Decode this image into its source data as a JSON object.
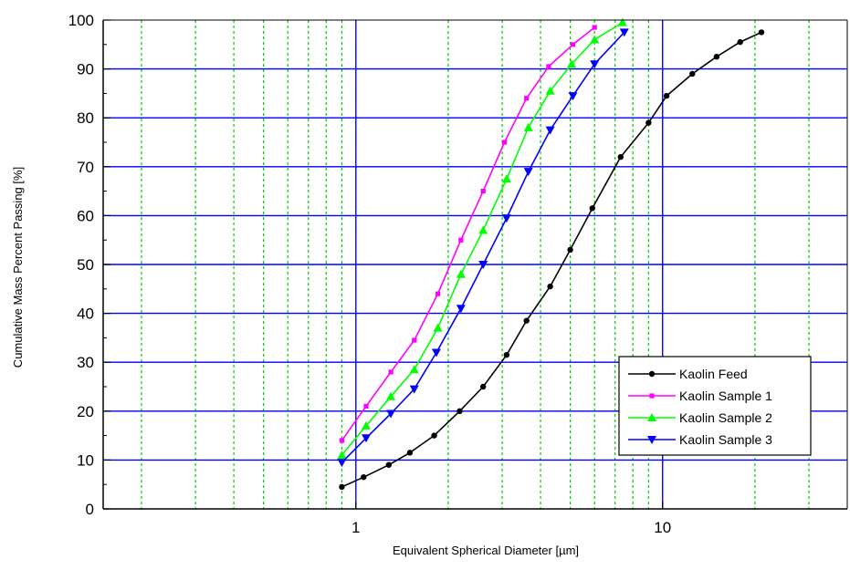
{
  "chart_data": {
    "type": "line",
    "xlabel": "Equivalent Spherical Diameter [µm]",
    "ylabel": "Cumulative Mass Percent Passing [%]",
    "x_scale": "log",
    "xlim": [
      0.15,
      40
    ],
    "ylim": [
      0,
      100
    ],
    "x_ticks": [
      1,
      10
    ],
    "x_tick_labels": [
      "1",
      "10"
    ],
    "y_ticks": [
      0,
      10,
      20,
      30,
      40,
      50,
      60,
      70,
      80,
      90,
      100
    ],
    "y_tick_labels": [
      "0",
      "10",
      "20",
      "30",
      "40",
      "50",
      "60",
      "70",
      "80",
      "90",
      "100"
    ],
    "grid": true,
    "legend_position": "lower-right",
    "colors": {
      "major_grid": "#0000ff",
      "minor_grid": "#00cc00"
    },
    "series": [
      {
        "name": "Kaolin Feed",
        "color": "#000000",
        "marker": "circle",
        "x": [
          0.9,
          1.06,
          1.28,
          1.5,
          1.8,
          2.18,
          2.6,
          3.1,
          3.6,
          4.3,
          5.0,
          5.9,
          7.3,
          9.0,
          10.3,
          12.5,
          15.0,
          17.9,
          21.0
        ],
        "y": [
          4.5,
          6.5,
          9,
          11.5,
          15,
          20,
          25,
          31.5,
          38.5,
          45.5,
          53,
          61.5,
          72,
          79,
          84.5,
          89,
          92.5,
          95.5,
          97.5
        ]
      },
      {
        "name": "Kaolin Sample 1",
        "color": "#ff00ff",
        "marker": "square",
        "x": [
          0.9,
          1.08,
          1.3,
          1.55,
          1.85,
          2.2,
          2.6,
          3.05,
          3.6,
          4.25,
          5.1,
          6.0
        ],
        "y": [
          14,
          21,
          28,
          34.5,
          44,
          55,
          65,
          75,
          84,
          90.5,
          95,
          98.5
        ]
      },
      {
        "name": "Kaolin Sample 2",
        "color": "#00ff00",
        "marker": "triangle-up",
        "x": [
          0.9,
          1.08,
          1.3,
          1.55,
          1.85,
          2.2,
          2.6,
          3.1,
          3.65,
          4.3,
          5.05,
          6.0,
          7.4
        ],
        "y": [
          11,
          17,
          23,
          28.5,
          37,
          48,
          57,
          67.5,
          78,
          85.5,
          91,
          96,
          99.5
        ]
      },
      {
        "name": "Kaolin Sample 3",
        "color": "#0000ff",
        "marker": "triangle-down",
        "x": [
          0.9,
          1.08,
          1.3,
          1.55,
          1.83,
          2.2,
          2.6,
          3.1,
          3.65,
          4.3,
          5.1,
          6.0,
          7.5
        ],
        "y": [
          9.5,
          14.5,
          19.5,
          24.5,
          32,
          41,
          50,
          59.5,
          69,
          77.5,
          84.5,
          91,
          97.5
        ]
      }
    ]
  }
}
